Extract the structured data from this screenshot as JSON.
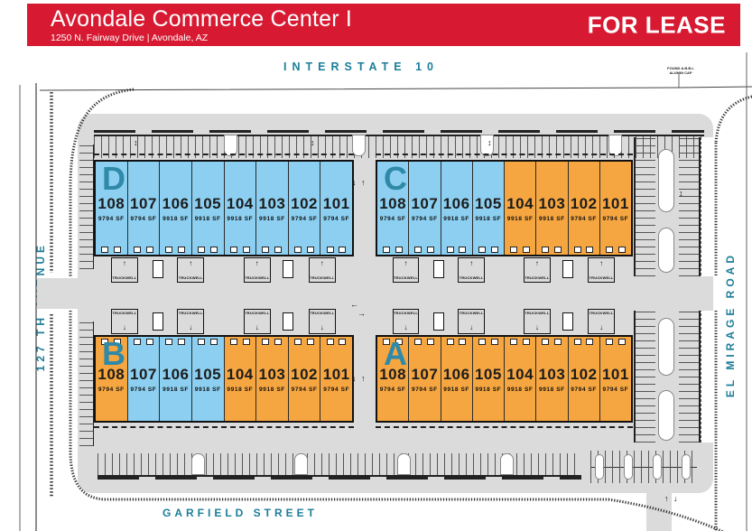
{
  "header": {
    "title": "Avondale Commerce Center I",
    "subtitle": "1250 N. Fairway Drive | Avondale, AZ",
    "for_lease": "FOR LEASE",
    "bar_color": "#D71A32"
  },
  "roads": {
    "top": "INTERSTATE 10",
    "left": "127 TH AVENUE",
    "right": "EL MIRAGE ROAD",
    "bottom": "GARFIELD STREET",
    "label_color": "#1B7E99"
  },
  "annotations": {
    "survey_note_line1": "FOUND A.B.B.L",
    "survey_note_line2": "ALUMIN CAP",
    "truckwell_label": "TRUCKWELL"
  },
  "icons": {
    "arrow_up": "↑",
    "arrow_down": "↓",
    "arrow_left": "←",
    "arrow_right": "→",
    "arrow_updown": "↕"
  },
  "colors": {
    "unit_blue": "#8CCFF1",
    "unit_orange": "#F6A640",
    "building_letter": "#2F89A8",
    "paving": "#DBDBDB",
    "linework": "#333333"
  },
  "buildings": [
    {
      "letter": "D",
      "units": [
        {
          "number": "108",
          "sf": "9794 SF",
          "color": "blue"
        },
        {
          "number": "107",
          "sf": "9794 SF",
          "color": "blue"
        },
        {
          "number": "106",
          "sf": "9918 SF",
          "color": "blue"
        },
        {
          "number": "105",
          "sf": "9918 SF",
          "color": "blue"
        },
        {
          "number": "104",
          "sf": "9918 SF",
          "color": "blue"
        },
        {
          "number": "103",
          "sf": "9918 SF",
          "color": "blue"
        },
        {
          "number": "102",
          "sf": "9794 SF",
          "color": "blue"
        },
        {
          "number": "101",
          "sf": "9794 SF",
          "color": "blue"
        }
      ]
    },
    {
      "letter": "C",
      "units": [
        {
          "number": "108",
          "sf": "9794 SF",
          "color": "blue"
        },
        {
          "number": "107",
          "sf": "9794 SF",
          "color": "blue"
        },
        {
          "number": "106",
          "sf": "9918 SF",
          "color": "blue"
        },
        {
          "number": "105",
          "sf": "9918 SF",
          "color": "blue"
        },
        {
          "number": "104",
          "sf": "9918 SF",
          "color": "orange"
        },
        {
          "number": "103",
          "sf": "9918 SF",
          "color": "orange"
        },
        {
          "number": "102",
          "sf": "9794 SF",
          "color": "orange"
        },
        {
          "number": "101",
          "sf": "9794 SF",
          "color": "orange"
        }
      ]
    },
    {
      "letter": "B",
      "units": [
        {
          "number": "108",
          "sf": "9794 SF",
          "color": "orange"
        },
        {
          "number": "107",
          "sf": "9794 SF",
          "color": "blue"
        },
        {
          "number": "106",
          "sf": "9918 SF",
          "color": "blue"
        },
        {
          "number": "105",
          "sf": "9918 SF",
          "color": "blue"
        },
        {
          "number": "104",
          "sf": "9918 SF",
          "color": "orange"
        },
        {
          "number": "103",
          "sf": "9918 SF",
          "color": "orange"
        },
        {
          "number": "102",
          "sf": "9794 SF",
          "color": "orange"
        },
        {
          "number": "101",
          "sf": "9794 SF",
          "color": "orange"
        }
      ]
    },
    {
      "letter": "A",
      "units": [
        {
          "number": "108",
          "sf": "9794 SF",
          "color": "orange"
        },
        {
          "number": "107",
          "sf": "9794 SF",
          "color": "orange"
        },
        {
          "number": "106",
          "sf": "9918 SF",
          "color": "orange"
        },
        {
          "number": "105",
          "sf": "9918 SF",
          "color": "orange"
        },
        {
          "number": "104",
          "sf": "9918 SF",
          "color": "orange"
        },
        {
          "number": "103",
          "sf": "9918 SF",
          "color": "orange"
        },
        {
          "number": "102",
          "sf": "9794 SF",
          "color": "orange"
        },
        {
          "number": "101",
          "sf": "9794 SF",
          "color": "orange"
        }
      ]
    }
  ]
}
